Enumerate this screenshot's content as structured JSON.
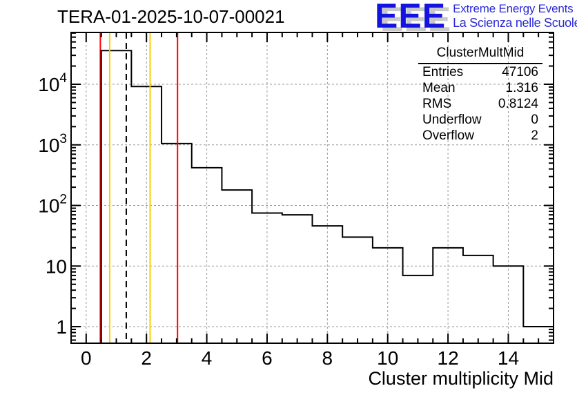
{
  "logo": {
    "acronym": "EEE",
    "line1": "Extreme Energy Events",
    "line2": "La Scienza nelle Scuole",
    "acronym_color": "#1414e0",
    "text_color": "#2a2ad4",
    "shadow_color": "#c9c9c9"
  },
  "stats_box": {
    "title": "ClusterMultMid",
    "rows": [
      {
        "label": "Entries",
        "value": "47106"
      },
      {
        "label": "Mean",
        "value": "1.316"
      },
      {
        "label": "RMS",
        "value": "0.8124"
      },
      {
        "label": "Underflow",
        "value": "0"
      },
      {
        "label": "Overflow",
        "value": "2"
      }
    ]
  },
  "chart_data": {
    "type": "bar",
    "title": "TERA-01-2025-10-07-00021",
    "xlabel": "Cluster multiplicity Mid",
    "ylabel": "",
    "x_scale": "linear",
    "y_scale": "log",
    "xlim": [
      -0.5,
      15.5
    ],
    "ylim": [
      0.533,
      71600
    ],
    "grid": true,
    "bin_width": 1,
    "bin_centers": [
      1,
      2,
      3,
      4,
      5,
      6,
      7,
      8,
      9,
      10,
      11,
      12,
      13,
      14,
      15
    ],
    "counts": [
      35960,
      9200,
      1050,
      420,
      180,
      75,
      70,
      46,
      30,
      20,
      7,
      20,
      15,
      10,
      1
    ],
    "x_major_ticks": [
      0,
      2,
      4,
      6,
      8,
      10,
      12,
      14
    ],
    "x_tick_labels": [
      "0",
      "2",
      "4",
      "6",
      "8",
      "10",
      "12",
      "14"
    ],
    "x_minor_step": 0.5,
    "y_major_ticks": [
      1,
      10,
      100,
      1000,
      10000
    ],
    "y_tick_labels": [
      "1",
      "10",
      "10^2",
      "10^3",
      "10^4"
    ],
    "hist_color": "#000000",
    "grid_color": "#999999",
    "marker_lines": [
      {
        "x": 0.47,
        "color": "#ff0000",
        "style": "solid",
        "z": "under",
        "name": "red-marker-line-1"
      },
      {
        "x": 0.78,
        "color": "#ffcc00",
        "style": "solid",
        "z": "over",
        "name": "orange-marker-line-1"
      },
      {
        "x": 1.33,
        "color": "#000000",
        "style": "dashed",
        "z": "over",
        "name": "mean-dashed-line"
      },
      {
        "x": 2.12,
        "color": "#ffcc00",
        "style": "solid",
        "z": "over",
        "name": "orange-marker-line-2"
      },
      {
        "x": 3.03,
        "color": "#ff0000",
        "style": "solid",
        "z": "over",
        "name": "red-marker-line-2"
      }
    ]
  }
}
